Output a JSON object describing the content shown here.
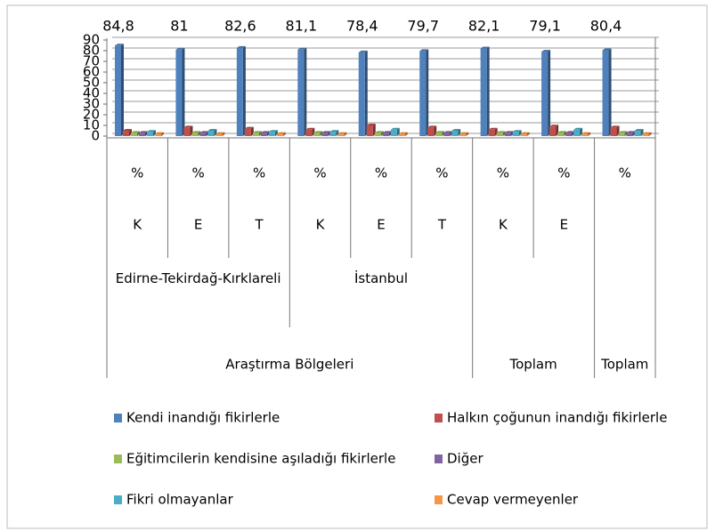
{
  "chart_data": {
    "type": "bar",
    "categories": [
      "%",
      "%",
      "%",
      "%",
      "%",
      "%",
      "%",
      "%",
      "%"
    ],
    "subcategories": [
      "K",
      "E",
      "T",
      "K",
      "E",
      "T",
      "K",
      "E",
      null
    ],
    "groups": [
      {
        "label": "Edirne-Tekirdağ-Kırklareli",
        "span": 3
      },
      {
        "label": "İstanbul",
        "span": 3
      }
    ],
    "super_groups": [
      {
        "label": "Araştırma Bölgeleri",
        "span": 6
      },
      {
        "label": "Toplam",
        "span": 2
      },
      {
        "label": "Toplam",
        "span": 1
      }
    ],
    "series": [
      {
        "name": "Kendi inandığı fikirlerle",
        "color": "#4f81bd",
        "values": [
          84.8,
          81,
          82.6,
          81.1,
          78.4,
          79.7,
          82.1,
          79.1,
          80.4
        ],
        "value_labels": [
          "84,8",
          "81",
          "82,6",
          "81,1",
          "78,4",
          "79,7",
          "82,1",
          "79,1",
          "80,4"
        ]
      },
      {
        "name": "Halkın çoğunun inandığı fikirlerle",
        "color": "#c0504d",
        "values": [
          5,
          8,
          7,
          6,
          10,
          8,
          6,
          9,
          8
        ]
      },
      {
        "name": "Eğitimcilerin kendisine aşıladığı fikirlerle",
        "color": "#9bbb59",
        "values": [
          3,
          3,
          3,
          3,
          3,
          3,
          3,
          3,
          3
        ]
      },
      {
        "name": "Diğer",
        "color": "#8064a2",
        "values": [
          3,
          3,
          3,
          3,
          3,
          3,
          3,
          3,
          3
        ]
      },
      {
        "name": "Fikri olmayanlar",
        "color": "#4bacc6",
        "values": [
          4,
          5,
          4,
          4,
          6,
          5,
          4,
          6,
          5
        ]
      },
      {
        "name": "Cevap vermeyenler",
        "color": "#f79646",
        "values": [
          2,
          2,
          2,
          2,
          2,
          2,
          2,
          2,
          2
        ]
      }
    ],
    "ylim": [
      0,
      90
    ],
    "yticks": [
      0,
      10,
      20,
      30,
      40,
      50,
      60,
      70,
      80,
      90
    ],
    "grid": true,
    "legend": "bottom"
  }
}
